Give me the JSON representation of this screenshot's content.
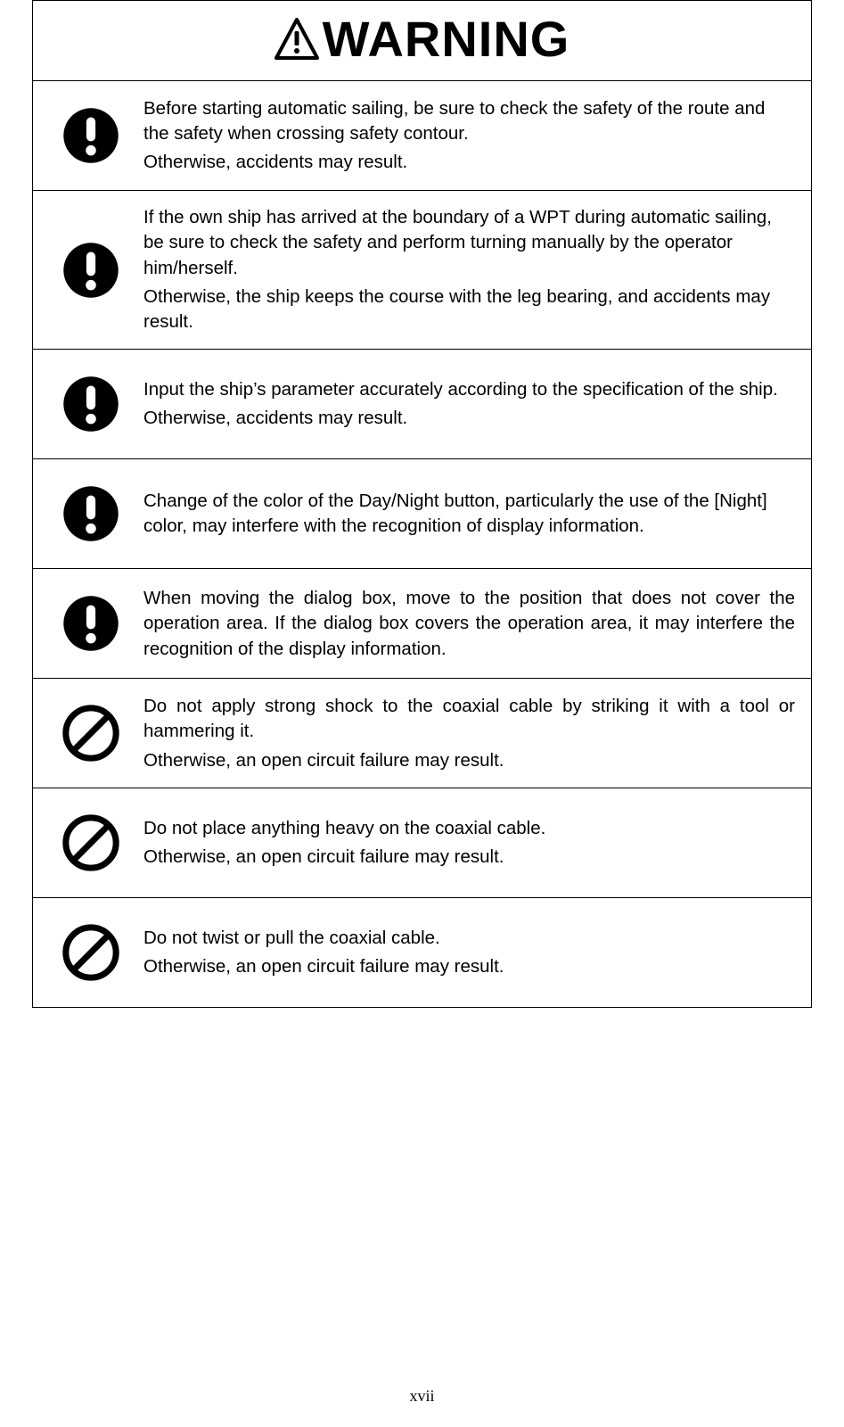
{
  "header": {
    "title": "WARNING"
  },
  "rows": [
    {
      "iconType": "exclaim",
      "justify": false,
      "paragraphs": [
        "Before starting automatic sailing, be sure to check the safety of the route and the safety when crossing safety contour.",
        "Otherwise, accidents may result."
      ]
    },
    {
      "iconType": "exclaim",
      "justify": false,
      "paragraphs": [
        "If the own ship has arrived at the boundary of a WPT during automatic sailing, be sure to check the safety and perform turning manually by the operator him/herself.",
        "Otherwise, the ship keeps the course with the leg bearing, and accidents may result."
      ]
    },
    {
      "iconType": "exclaim",
      "justify": false,
      "paragraphs": [
        "Input the ship’s parameter accurately according to the specification of the ship.",
        "Otherwise, accidents may result."
      ]
    },
    {
      "iconType": "exclaim",
      "justify": false,
      "paragraphs": [
        "Change of the color of the Day/Night button, particularly the use of the [Night] color, may interfere with the recognition of display information."
      ]
    },
    {
      "iconType": "exclaim",
      "justify": true,
      "paragraphs": [
        "When moving the dialog box, move to the position that does not cover the operation area. If the dialog box covers the operation area, it may interfere the recognition of the display information."
      ]
    },
    {
      "iconType": "prohibit",
      "justify": true,
      "paragraphs": [
        "Do not apply strong shock to the coaxial cable by striking it with a tool or hammering it.",
        "Otherwise, an open circuit failure may result."
      ]
    },
    {
      "iconType": "prohibit",
      "justify": false,
      "paragraphs": [
        "Do not place anything heavy on the coaxial cable.",
        "Otherwise, an open circuit failure may result."
      ]
    },
    {
      "iconType": "prohibit",
      "justify": false,
      "paragraphs": [
        "Do not twist or pull the coaxial cable.",
        "Otherwise, an open circuit failure may result."
      ]
    }
  ],
  "pageNumber": "xvii",
  "colors": {
    "text": "#000000",
    "background": "#ffffff",
    "border": "#000000",
    "iconFill": "#000000"
  },
  "typography": {
    "bodyFontSize": 20.5,
    "titleFontSize": 56,
    "pageNumberFontSize": 18
  }
}
